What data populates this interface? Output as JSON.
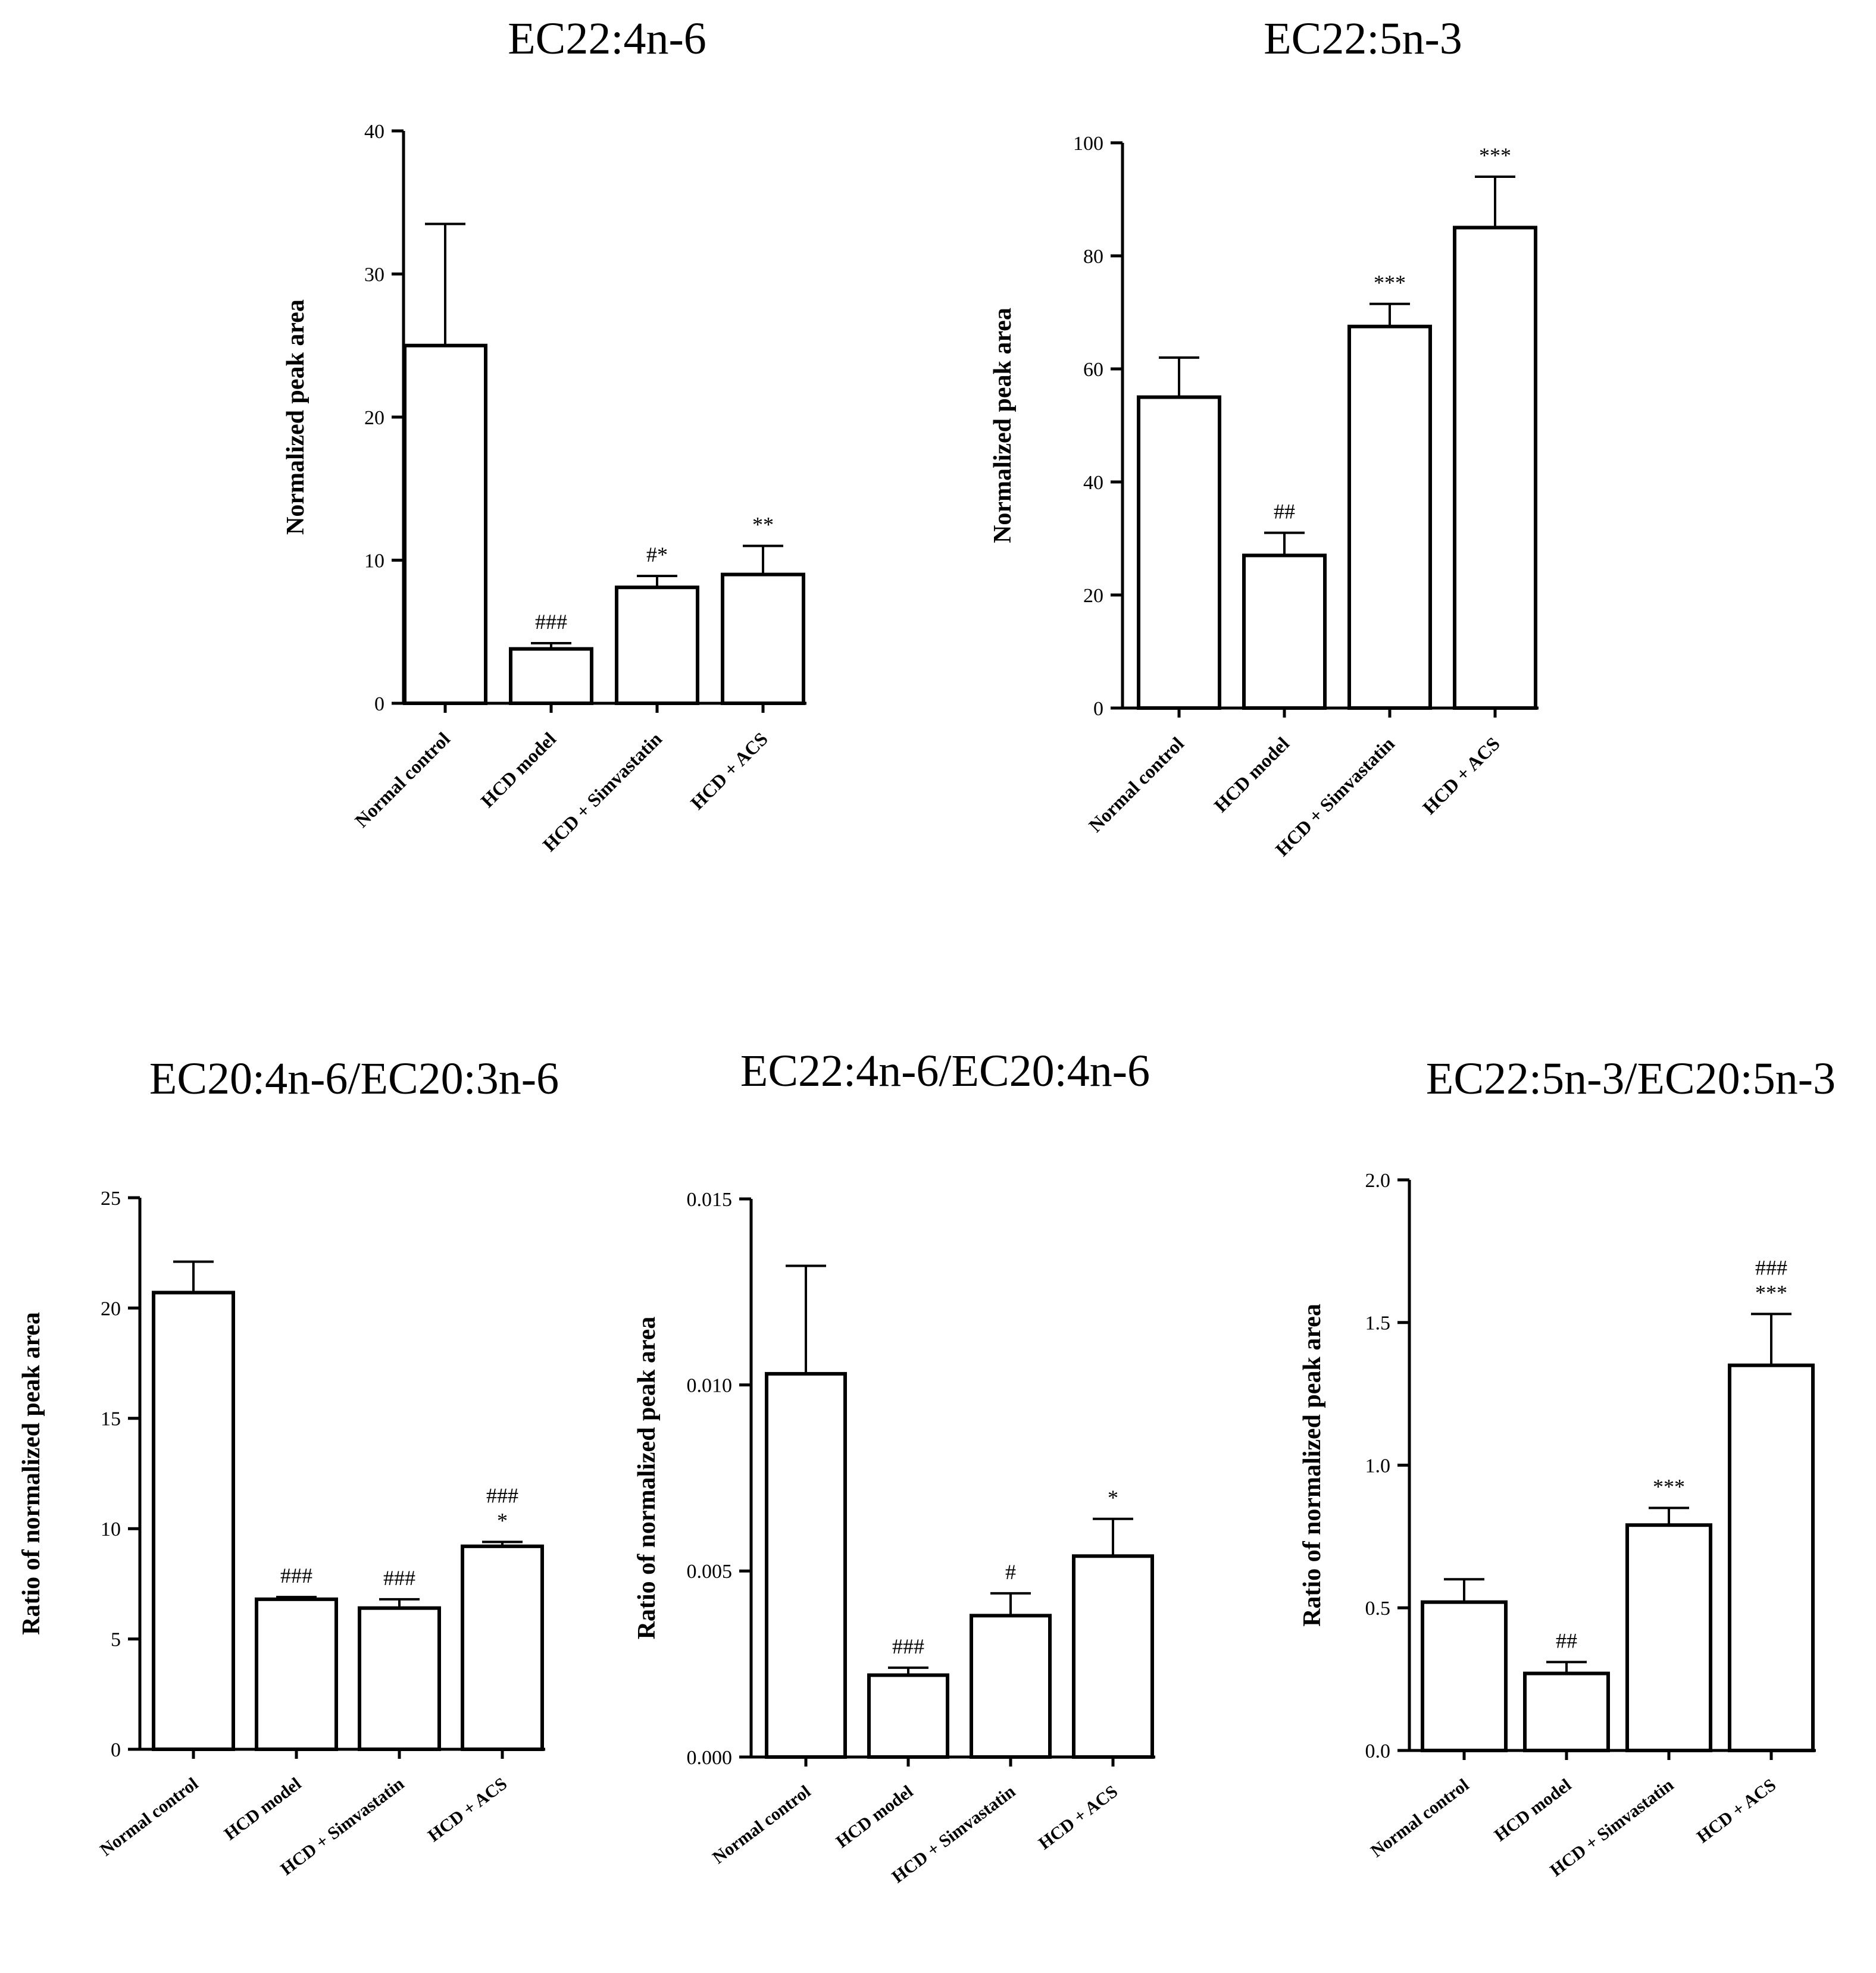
{
  "chart_data": [
    {
      "type": "bar",
      "title": "EC22:4n-6",
      "ylabel": "Normalized peak area",
      "xlabel": "",
      "ylim": [
        0,
        40
      ],
      "yticks": [
        "0",
        "10",
        "20",
        "30",
        "40"
      ],
      "categories": [
        "Normal control",
        "HCD model",
        "HCD + Simvastatin",
        "HCD + ACS"
      ],
      "values": [
        25.0,
        3.8,
        8.1,
        9.0
      ],
      "errors": [
        8.5,
        0.4,
        0.8,
        2.0
      ],
      "annotations": [
        [],
        [
          "###"
        ],
        [
          "#*"
        ],
        [
          "**"
        ]
      ]
    },
    {
      "type": "bar",
      "title": "EC22:5n-3",
      "ylabel": "Normalized peak area",
      "xlabel": "",
      "ylim": [
        0,
        100
      ],
      "yticks": [
        "0",
        "20",
        "40",
        "60",
        "80",
        "100"
      ],
      "categories": [
        "Normal control",
        "HCD model",
        "HCD + Simvastatin",
        "HCD + ACS"
      ],
      "values": [
        55.0,
        27.0,
        67.5,
        85.0
      ],
      "errors": [
        7.0,
        4.0,
        4.0,
        9.0
      ],
      "annotations": [
        [],
        [
          "##"
        ],
        [
          "***"
        ],
        [
          "***"
        ]
      ]
    },
    {
      "type": "bar",
      "title": "EC20:4n-6/EC20:3n-6",
      "ylabel": "Ratio of normalized peak area",
      "xlabel": "",
      "ylim": [
        0,
        25
      ],
      "yticks": [
        "0",
        "5",
        "10",
        "15",
        "20",
        "25"
      ],
      "categories": [
        "Normal control",
        "HCD model",
        "HCD + Simvastatin",
        "HCD + ACS"
      ],
      "values": [
        20.7,
        6.8,
        6.4,
        9.2
      ],
      "errors": [
        1.4,
        0.1,
        0.4,
        0.2
      ],
      "annotations": [
        [],
        [
          "###"
        ],
        [
          "###"
        ],
        [
          "###",
          "*"
        ]
      ]
    },
    {
      "type": "bar",
      "title": "EC22:4n-6/EC20:4n-6",
      "ylabel": "Ratio of normalized peak area",
      "xlabel": "",
      "ylim": [
        0,
        0.015
      ],
      "yticks": [
        "0.000",
        "0.005",
        "0.010",
        "0.015"
      ],
      "categories": [
        "Normal control",
        "HCD model",
        "HCD + Simvastatin",
        "HCD + ACS"
      ],
      "values": [
        0.0103,
        0.0022,
        0.0038,
        0.0054
      ],
      "errors": [
        0.0029,
        0.0002,
        0.0006,
        0.001
      ],
      "annotations": [
        [],
        [
          "###"
        ],
        [
          "#"
        ],
        [
          "*"
        ]
      ]
    },
    {
      "type": "bar",
      "title": "EC22:5n-3/EC20:5n-3",
      "ylabel": "Ratio of normalized peak area",
      "xlabel": "",
      "ylim": [
        0,
        2.0
      ],
      "yticks": [
        "0.0",
        "0.5",
        "1.0",
        "1.5",
        "2.0"
      ],
      "categories": [
        "Normal control",
        "HCD model",
        "HCD + Simvastatin",
        "HCD + ACS"
      ],
      "values": [
        0.52,
        0.27,
        0.79,
        1.35
      ],
      "errors": [
        0.08,
        0.04,
        0.06,
        0.18
      ],
      "annotations": [
        [],
        [
          "##"
        ],
        [
          "***"
        ],
        [
          "###",
          "***"
        ]
      ]
    }
  ]
}
